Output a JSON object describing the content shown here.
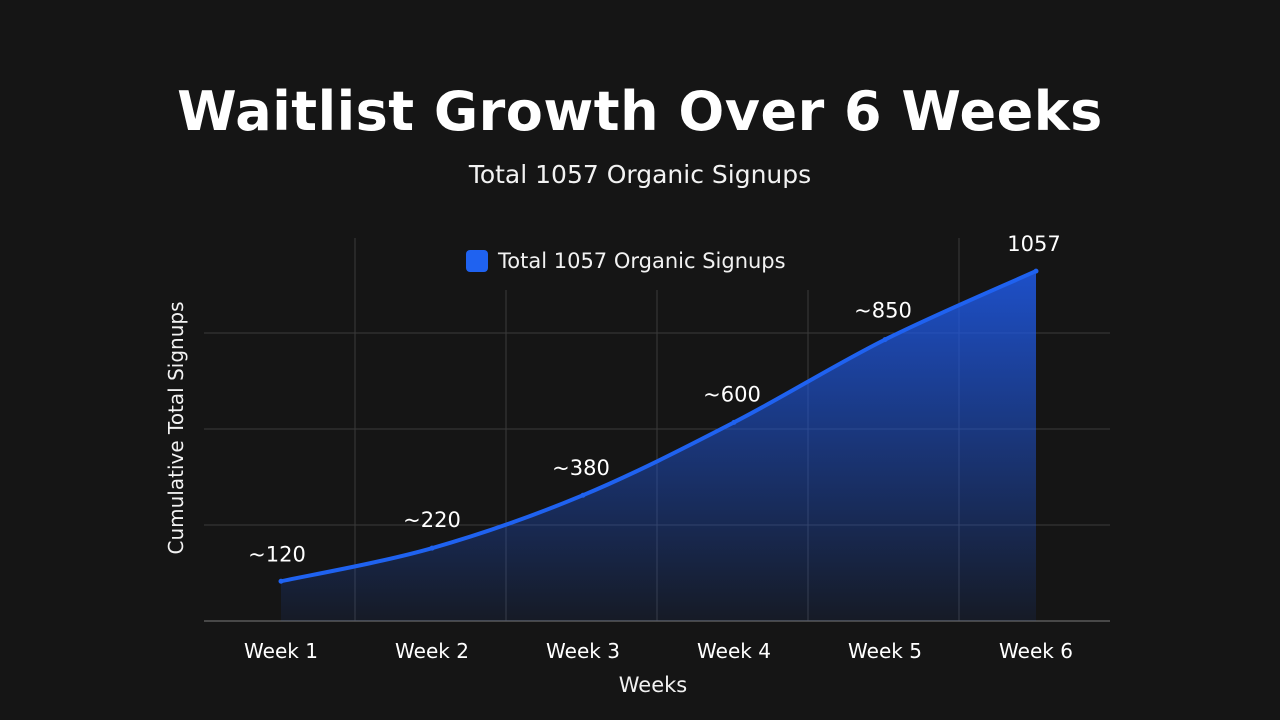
{
  "chart_data": {
    "type": "area",
    "title": "Waitlist Growth Over 6 Weeks",
    "subtitle": "Total 1057 Organic Signups",
    "xlabel": "Weeks",
    "ylabel": "Cumulative Total Signups",
    "categories": [
      "Week 1",
      "Week 2",
      "Week 3",
      "Week 4",
      "Week 5",
      "Week 6"
    ],
    "series": [
      {
        "name": "Total 1057 Organic Signups",
        "values": [
          120,
          220,
          380,
          600,
          850,
          1057
        ],
        "labels": [
          "~120",
          "~220",
          "~380",
          "~600",
          "~850",
          "1057"
        ]
      }
    ],
    "ylim": [
      0,
      1157
    ],
    "grid": true,
    "legend_position": "top",
    "colors": {
      "line": "#1f62f0",
      "fill": "#1f62f0",
      "grid": "#3a3a3a",
      "background": "#151515"
    }
  }
}
